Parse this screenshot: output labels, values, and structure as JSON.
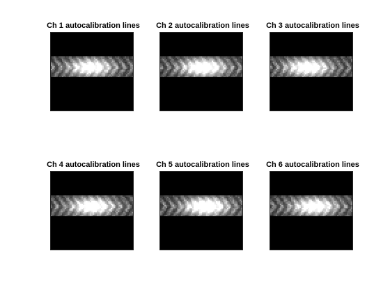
{
  "figure": {
    "panels": [
      {
        "id": "ch1",
        "title": "Ch 1 autocalibration lines",
        "hotspot": 0.48,
        "intensity": 0.85
      },
      {
        "id": "ch2",
        "title": "Ch 2 autocalibration lines",
        "hotspot": 0.52,
        "intensity": 0.95
      },
      {
        "id": "ch3",
        "title": "Ch 3 autocalibration lines",
        "hotspot": 0.45,
        "intensity": 0.9
      },
      {
        "id": "ch4",
        "title": "Ch 4 autocalibration lines",
        "hotspot": 0.5,
        "intensity": 0.92
      },
      {
        "id": "ch5",
        "title": "Ch 5 autocalibration lines",
        "hotspot": 0.55,
        "intensity": 1.0
      },
      {
        "id": "ch6",
        "title": "Ch 6 autocalibration lines",
        "hotspot": 0.53,
        "intensity": 0.88
      }
    ],
    "colors": {
      "background": "#000000",
      "band": "#a0a0a0",
      "highlight": "#ffffff"
    }
  }
}
